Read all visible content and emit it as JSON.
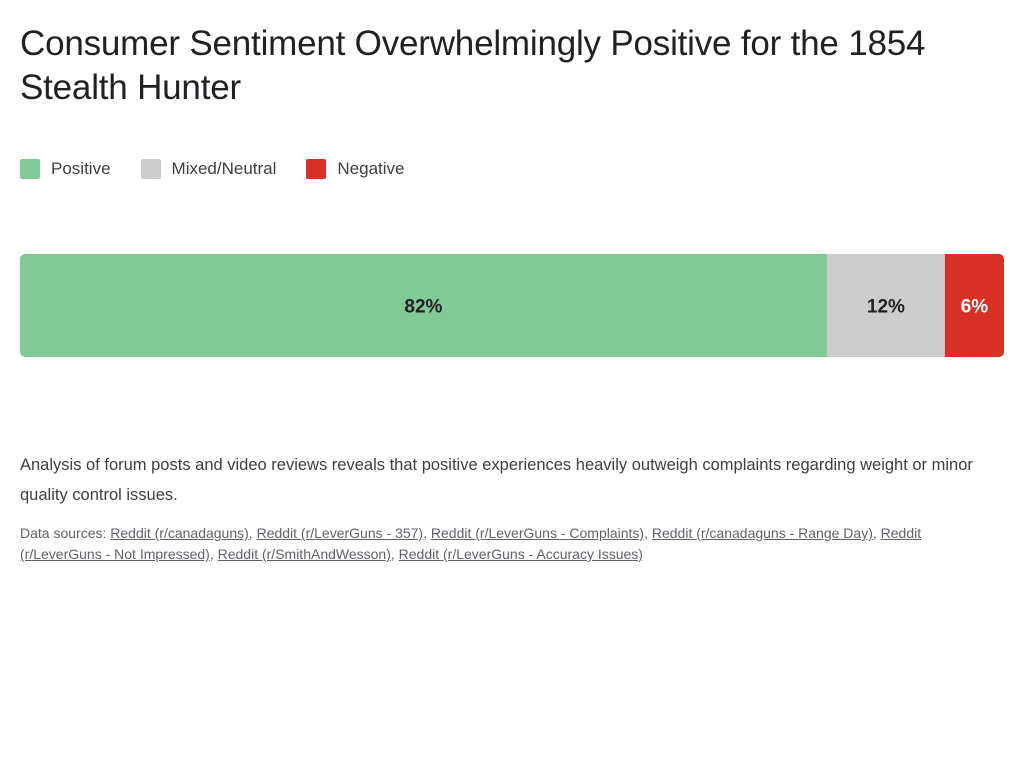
{
  "title": "Consumer Sentiment Overwhelmingly Positive for the 1854 Stealth Hunter",
  "legend": [
    {
      "label": "Positive",
      "color": "#81c995"
    },
    {
      "label": "Mixed/Neutral",
      "color": "#cccccc"
    },
    {
      "label": "Negative",
      "color": "#d93025"
    }
  ],
  "chart_data": {
    "type": "bar",
    "orientation": "horizontal-stacked-100",
    "categories": [
      "Positive",
      "Mixed/Neutral",
      "Negative"
    ],
    "values": [
      82,
      12,
      6
    ],
    "data_labels": [
      "82%",
      "12%",
      "6%"
    ],
    "colors": [
      "#81c995",
      "#cccccc",
      "#d93025"
    ],
    "label_colors": [
      "#202124",
      "#202124",
      "#ffffff"
    ],
    "title": "Consumer Sentiment Overwhelmingly Positive for the 1854 Stealth Hunter",
    "legend_position": "top-left",
    "grid": false
  },
  "summary": "Analysis of forum posts and video reviews reveals that positive experiences heavily outweigh complaints regarding weight or minor quality control issues.",
  "sources": {
    "prefix": "Data sources: ",
    "links": [
      "Reddit (r/canadaguns)",
      "Reddit (r/LeverGuns - 357)",
      "Reddit (r/LeverGuns - Complaints)",
      "Reddit (r/canadaguns - Range Day)",
      "Reddit (r/LeverGuns - Not Impressed)",
      "Reddit (r/SmithAndWesson)",
      "Reddit (r/LeverGuns - Accuracy Issues)"
    ]
  }
}
